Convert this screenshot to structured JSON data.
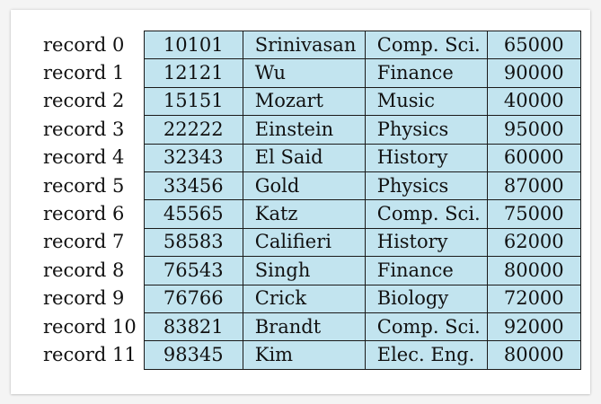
{
  "table": {
    "rows": [
      {
        "label": "record 0",
        "id": "10101",
        "name": "Srinivasan",
        "dept": "Comp. Sci.",
        "salary": "65000"
      },
      {
        "label": "record 1",
        "id": "12121",
        "name": "Wu",
        "dept": "Finance",
        "salary": "90000"
      },
      {
        "label": "record 2",
        "id": "15151",
        "name": "Mozart",
        "dept": "Music",
        "salary": "40000"
      },
      {
        "label": "record 3",
        "id": "22222",
        "name": "Einstein",
        "dept": "Physics",
        "salary": "95000"
      },
      {
        "label": "record 4",
        "id": "32343",
        "name": "El Said",
        "dept": "History",
        "salary": "60000"
      },
      {
        "label": "record 5",
        "id": "33456",
        "name": "Gold",
        "dept": "Physics",
        "salary": "87000"
      },
      {
        "label": "record 6",
        "id": "45565",
        "name": "Katz",
        "dept": "Comp. Sci.",
        "salary": "75000"
      },
      {
        "label": "record 7",
        "id": "58583",
        "name": "Califieri",
        "dept": "History",
        "salary": "62000"
      },
      {
        "label": "record 8",
        "id": "76543",
        "name": "Singh",
        "dept": "Finance",
        "salary": "80000"
      },
      {
        "label": "record 9",
        "id": "76766",
        "name": "Crick",
        "dept": "Biology",
        "salary": "72000"
      },
      {
        "label": "record 10",
        "id": "83821",
        "name": "Brandt",
        "dept": "Comp. Sci.",
        "salary": "92000"
      },
      {
        "label": "record 11",
        "id": "98345",
        "name": "Kim",
        "dept": "Elec. Eng.",
        "salary": "80000"
      }
    ]
  },
  "colors": {
    "cell_fill": "#c2e4ef",
    "border": "#1a1a1a",
    "text": "#111111"
  }
}
